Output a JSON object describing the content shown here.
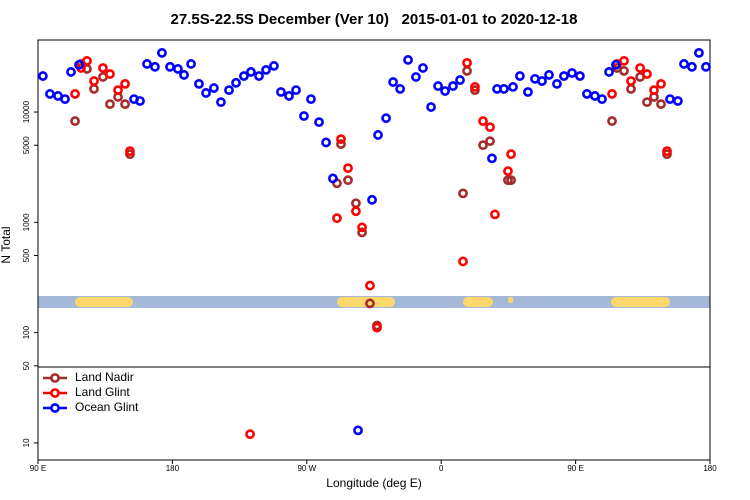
{
  "chart_data": {
    "type": "scatter",
    "title": "27.5S-22.5S December (Ver 10)   2015-01-01 to 2020-12-18",
    "xlabel": "Longitude (deg E)",
    "ylabel": "N Total",
    "xlim": [
      90,
      540
    ],
    "xticks": [
      {
        "value": 90,
        "label": "90 E"
      },
      180,
      {
        "value": 270,
        "label": "90 W"
      },
      {
        "value": 360,
        "label": "0"
      },
      {
        "value": 450,
        "label": "90 E"
      },
      {
        "value": 540,
        "label": "180"
      }
    ],
    "ylim": [
      7,
      45000
    ],
    "log_y": true,
    "yticks": [
      10,
      50,
      100,
      500,
      1000,
      5000,
      10000
    ],
    "legend": "lower left",
    "series": [
      {
        "name": "Land Nadir",
        "color": "#a52a2a",
        "x": [
          114.8,
          118.8,
          122.8,
          127.5,
          133.5,
          138.2,
          143.6,
          148.3,
          151.6,
          290.2,
          292.9,
          297.6,
          302.9,
          307.0,
          312.3,
          317.0,
          374.6,
          377.3,
          382.6,
          388.0,
          392.7,
          404.7,
          406.8,
          474.4,
          477.7,
          482.4,
          487.1,
          493.2,
          497.8,
          502.5,
          507.2,
          511.2
        ],
        "values": [
          8280,
          27300,
          24600,
          16200,
          20800,
          11800,
          13700,
          11800,
          4150,
          2260,
          5120,
          2410,
          1490,
          810,
          184,
          116,
          1830,
          23600,
          15800,
          5010,
          5450,
          2410,
          2410,
          8280,
          25100,
          23600,
          16200,
          20800,
          12300,
          13700,
          11800,
          4150
        ]
      },
      {
        "name": "Land Glint",
        "color": "#ff0000",
        "x": [
          114.8,
          118.8,
          122.8,
          127.5,
          133.5,
          138.2,
          143.6,
          148.3,
          151.6,
          232.0,
          290.2,
          292.9,
          297.6,
          302.9,
          307.0,
          312.3,
          317.0,
          374.6,
          377.3,
          382.6,
          388.0,
          392.7,
          396.0,
          404.7,
          406.8,
          474.4,
          477.7,
          482.4,
          487.1,
          493.2,
          497.8,
          502.5,
          507.2,
          511.2
        ],
        "values": [
          14600,
          25100,
          29100,
          19100,
          25100,
          22100,
          15800,
          18000,
          4420,
          12,
          1090,
          5680,
          3100,
          1260,
          900,
          267,
          111,
          442,
          27900,
          16900,
          8280,
          7300,
          1180,
          2910,
          4150,
          14600,
          27300,
          29100,
          19100,
          25100,
          22100,
          15800,
          18000,
          4420
        ]
      },
      {
        "name": "Ocean Glint",
        "color": "#0000ff",
        "x": [
          93.3,
          98.0,
          103.4,
          108.1,
          112.1,
          117.5,
          154.3,
          158.3,
          163.0,
          168.3,
          173.0,
          178.4,
          183.7,
          187.8,
          192.5,
          197.8,
          202.5,
          207.8,
          212.5,
          217.9,
          222.6,
          227.9,
          232.6,
          238.0,
          242.7,
          248.0,
          252.7,
          258.1,
          262.8,
          268.1,
          272.8,
          278.2,
          282.9,
          287.5,
          304.3,
          313.7,
          317.7,
          323.1,
          327.8,
          332.5,
          337.8,
          343.1,
          347.8,
          353.2,
          357.9,
          362.6,
          367.9,
          372.6,
          394.0,
          397.4,
          402.0,
          408.1,
          412.7,
          418.1,
          422.8,
          427.5,
          432.2,
          437.5,
          442.2,
          447.6,
          452.9,
          457.6,
          462.9,
          467.7,
          472.4,
          477.0,
          513.2,
          518.5,
          522.6,
          527.9,
          532.6,
          537.3
        ],
        "values": [
          21200,
          14600,
          14000,
          13100,
          23100,
          26800,
          13100,
          12600,
          27300,
          25700,
          34400,
          25700,
          24600,
          21700,
          27300,
          18000,
          14900,
          16500,
          12300,
          15800,
          18400,
          21200,
          23100,
          21200,
          24100,
          26200,
          15200,
          14000,
          15800,
          9200,
          13100,
          8100,
          5300,
          2500,
          13,
          1600,
          6200,
          8800,
          18700,
          16200,
          29700,
          20800,
          25100,
          11100,
          17200,
          15500,
          17200,
          19500,
          3800,
          16200,
          16200,
          16900,
          21200,
          15200,
          20000,
          19100,
          21700,
          18000,
          21200,
          22600,
          21200,
          14600,
          14000,
          13100,
          23100,
          26800,
          13100,
          12600,
          27300,
          25700,
          34400,
          25700
        ]
      }
    ]
  }
}
